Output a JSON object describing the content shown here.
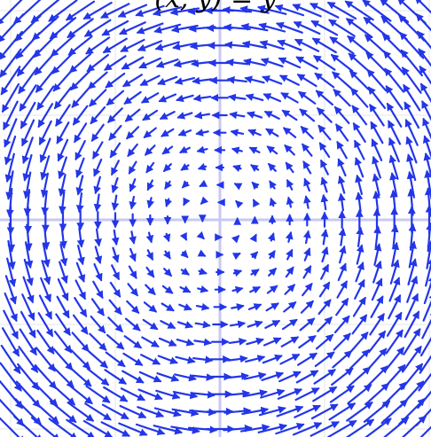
{
  "chart_data": {
    "type": "vector-field",
    "title": "(x, y) = y",
    "field": "rotation",
    "x_range": [
      -2,
      2
    ],
    "y_range": [
      -2,
      2
    ],
    "grid": true,
    "axes": true,
    "arrow_color": "#2336e8",
    "grid_color": "#e6e6e6",
    "axis_color": "#c8c8f2"
  }
}
